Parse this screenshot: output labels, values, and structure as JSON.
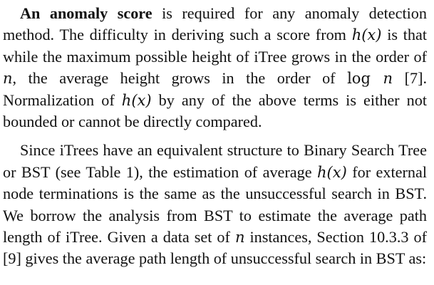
{
  "paragraph_1": {
    "lead": "An anomaly score",
    "t1": " is required for any anomaly detection method. The difficulty in deriving such a score from ",
    "m1": "h(x)",
    "t2": " is that while the maximum possible height of iTree grows in the order of ",
    "m2": "n",
    "t3": ", the average height grows in the order of ",
    "m3a": "log",
    "m3b": " n",
    "t4": " [7]. Normalization of ",
    "m4": "h(x)",
    "t5": " by any of the above terms is either not bounded or cannot be directly compared."
  },
  "paragraph_2": {
    "t1": "Since iTrees have an equivalent structure to Binary Search Tree or BST (see Table 1), the estimation of aver­age ",
    "m1": "h(x)",
    "t2": " for external node terminations is the same as the unsuccessful search in BST. We borrow the analysis from BST to estimate the average path length of iTree. Given a data set of ",
    "m2": "n",
    "t3": " instances, Section 10.3.3 of [9] gives the aver­age path length of unsuccessful search in BST as:"
  }
}
